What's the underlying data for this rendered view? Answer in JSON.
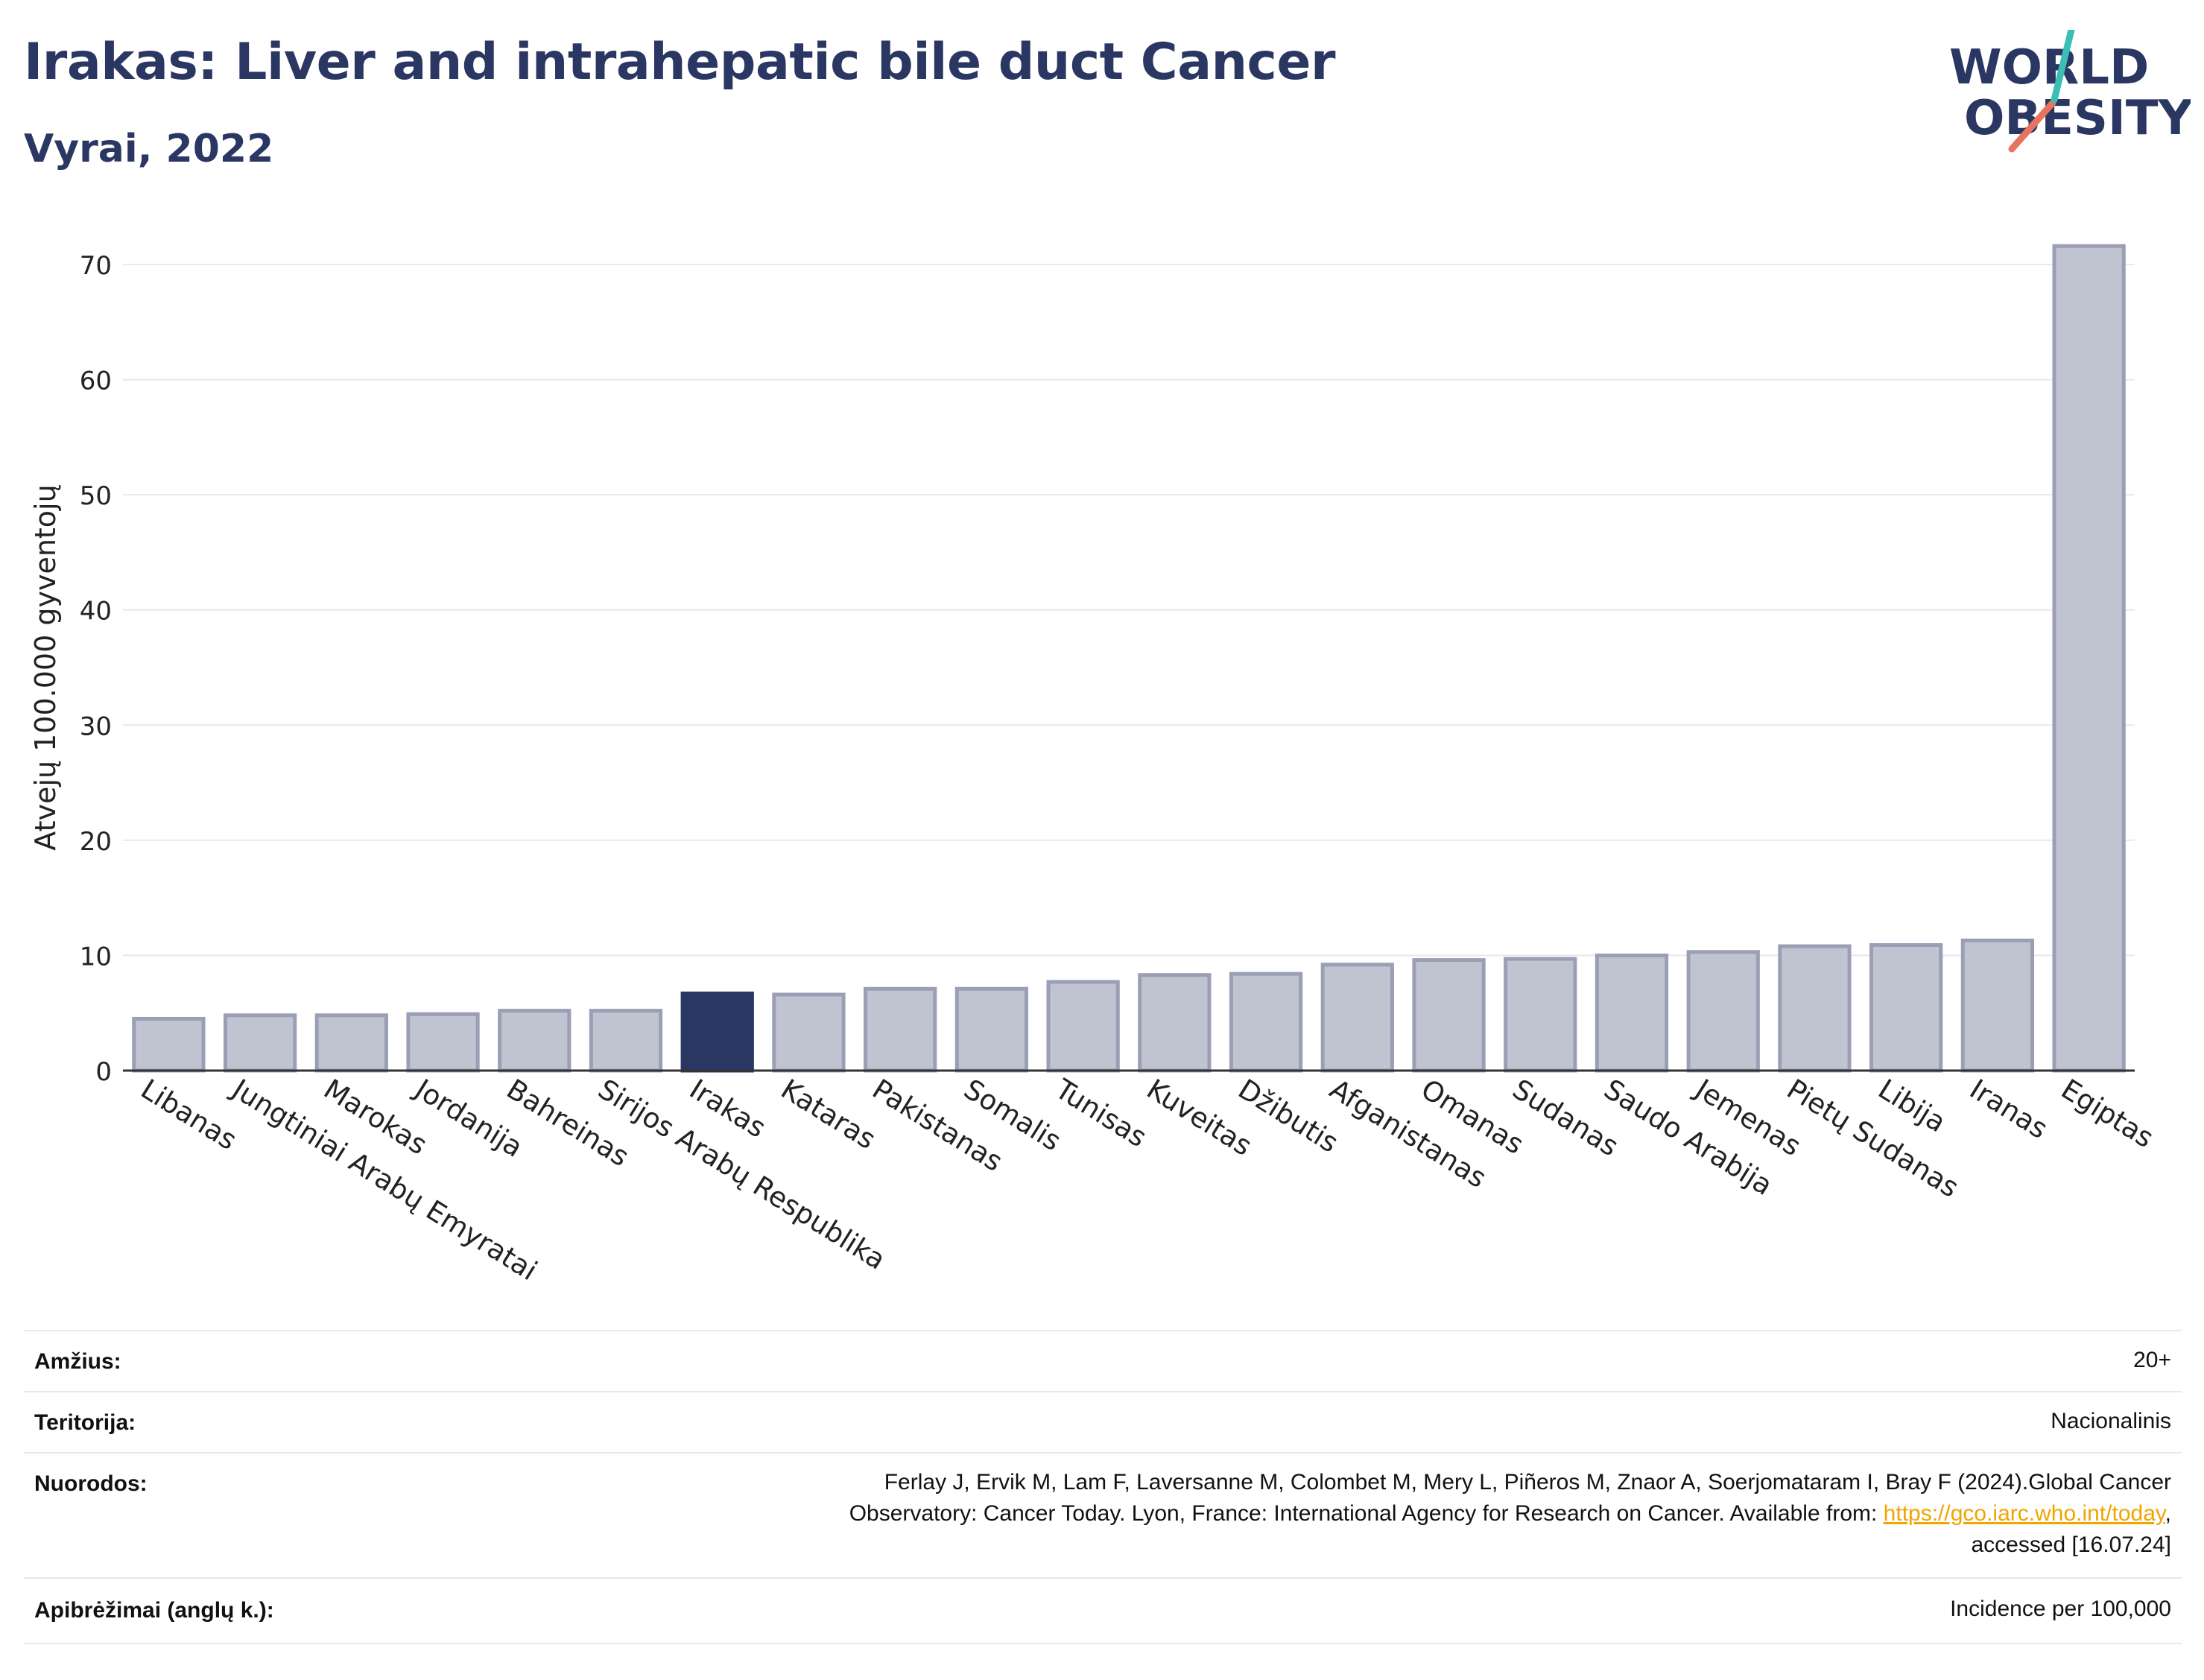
{
  "header": {
    "title": "Irakas: Liver and intrahepatic bile duct Cancer",
    "subtitle": "Vyrai, 2022",
    "logo_text_line1": "WORLD",
    "logo_text_line2": "OBESITY"
  },
  "chart_data": {
    "type": "bar",
    "title": "Irakas: Liver and intrahepatic bile duct Cancer",
    "subtitle": "Vyrai, 2022",
    "ylabel": "Atvejų 100.000 gyventojų",
    "xlabel": "",
    "ylim": [
      0,
      73
    ],
    "yticks": [
      0,
      10,
      20,
      30,
      40,
      50,
      60,
      70
    ],
    "grid": true,
    "highlight": "Irakas",
    "colors": {
      "default": "#c0c3d0",
      "default_edge": "#9a9fb5",
      "highlight": "#2b3763",
      "axis": "#333333",
      "grid": "#e8e8ee"
    },
    "categories": [
      "Libanas",
      "Jungtiniai Arabų Emyratai",
      "Marokas",
      "Jordanija",
      "Bahreinas",
      "Sirijos Arabų Respublika",
      "Irakas",
      "Kataras",
      "Pakistanas",
      "Somalis",
      "Tunisas",
      "Kuveitas",
      "Džibutis",
      "Afganistanas",
      "Omanas",
      "Sudanas",
      "Saudo Arabija",
      "Jemenas",
      "Pietų Sudanas",
      "Libija",
      "Iranas",
      "Egiptas"
    ],
    "values": [
      4.5,
      4.8,
      4.8,
      4.9,
      5.2,
      5.2,
      6.7,
      6.6,
      7.1,
      7.1,
      7.7,
      8.3,
      8.4,
      9.2,
      9.6,
      9.7,
      10.0,
      10.3,
      10.8,
      10.9,
      11.3,
      71.6
    ]
  },
  "meta": {
    "rows": [
      {
        "label": "Amžius:",
        "value": "20+"
      },
      {
        "label": "Teritorija:",
        "value": "Nacionalinis"
      },
      {
        "label": "Nuorodos:",
        "value_line1": "Ferlay J, Ervik M, Lam F, Laversanne M, Colombet M, Mery L, Piñeros M, Znaor A, Soerjomataram I, Bray F (2024).Global Cancer",
        "value_line2_pre": "Observatory: Cancer Today. Lyon, France: International Agency for Research on Cancer. Available from: ",
        "value_link": "https://gco.iarc.who.int/today",
        "value_line2_post": ",",
        "value_line3": "accessed [16.07.24]"
      },
      {
        "label": "Apibrėžimai (anglų k.):",
        "value": "Incidence per 100,000"
      }
    ]
  }
}
